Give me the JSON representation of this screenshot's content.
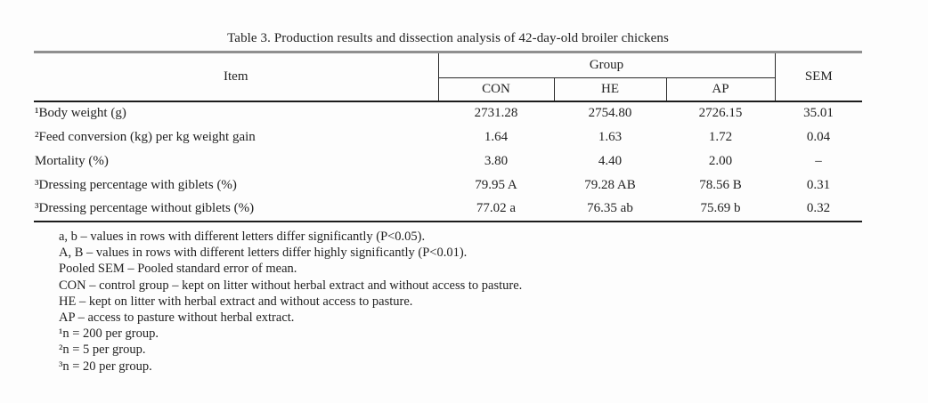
{
  "title": "Table 3. Production results and dissection analysis of 42-day-old broiler chickens",
  "table": {
    "item_header": "Item",
    "group_header": "Group",
    "sem_header": "SEM",
    "group_columns": [
      "CON",
      "HE",
      "AP"
    ],
    "rows": [
      {
        "label": "¹Body weight (g)",
        "con": "2731.28",
        "he": "2754.80",
        "ap": "2726.15",
        "sem": "35.01"
      },
      {
        "label": "²Feed conversion (kg) per kg weight gain",
        "con": "1.64",
        "he": "1.63",
        "ap": "1.72",
        "sem": "0.04"
      },
      {
        "label": "Mortality (%)",
        "con": "3.80",
        "he": "4.40",
        "ap": "2.00",
        "sem": "–"
      },
      {
        "label": "³Dressing percentage with giblets (%)",
        "con": "79.95 A",
        "he": "79.28 AB",
        "ap": "78.56 B",
        "sem": "0.31"
      },
      {
        "label": "³Dressing percentage without giblets (%)",
        "con": "77.02 a",
        "he": "76.35 ab",
        "ap": "75.69 b",
        "sem": "0.32"
      }
    ]
  },
  "footnotes": [
    "a, b – values in rows with different letters differ significantly (P<0.05).",
    "A, B – values in rows with different letters differ highly significantly (P<0.01).",
    "Pooled SEM – Pooled standard error of mean.",
    "CON – control group – kept on litter without herbal extract and without access to pasture.",
    "HE – kept on litter with herbal extract and without access to pasture.",
    "AP – access to pasture without herbal extract.",
    "¹n = 200 per group.",
    "²n = 5 per group.",
    "³n = 20 per group."
  ],
  "colors": {
    "background": "#fdfdfd",
    "text": "#222222",
    "top_rule": "#8f8f8f",
    "rule": "#1c1c1c"
  }
}
